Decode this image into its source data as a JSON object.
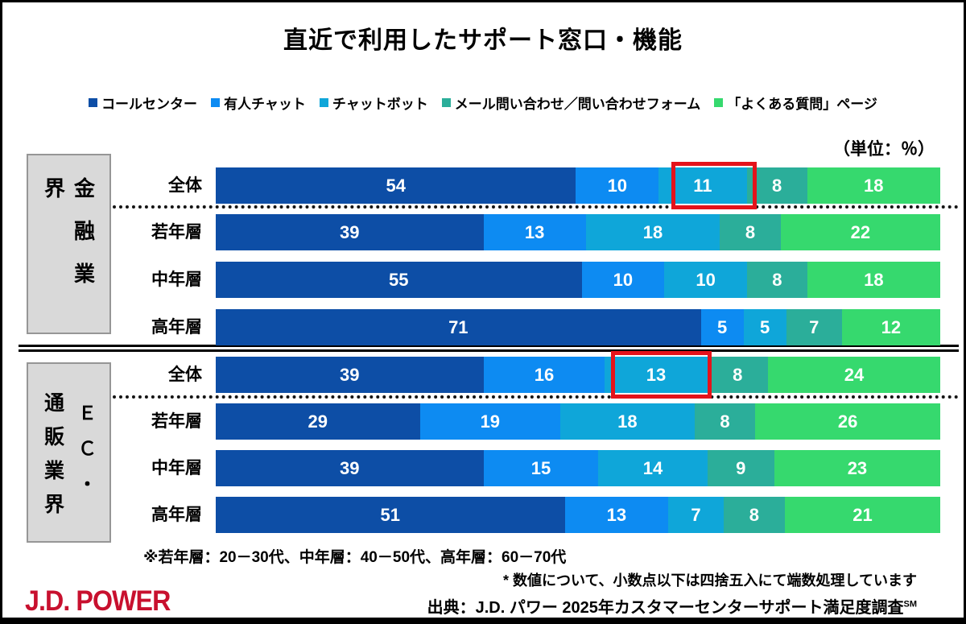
{
  "title": "直近で利用したサポート窓口・機能",
  "unit_label": "（単位：％）",
  "legend": {
    "items": [
      {
        "label": "コールセンター",
        "color": "#0d4ea6"
      },
      {
        "label": "有人チャット",
        "color": "#0d8bf2"
      },
      {
        "label": "チャットボット",
        "color": "#0fa6d9"
      },
      {
        "label": "メール問い合わせ／問い合わせフォーム",
        "color": "#2bae9a"
      },
      {
        "label": "「よくある質問」ページ",
        "color": "#36d96e"
      }
    ]
  },
  "chart_data": {
    "type": "bar",
    "orientation": "horizontal-stacked",
    "unit": "%",
    "title": "直近で利用したサポート窓口・機能",
    "series_names": [
      "コールセンター",
      "有人チャット",
      "チャットボット",
      "メール問い合わせ／問い合わせフォーム",
      "「よくある質問」ページ"
    ],
    "colors": [
      "#0d4ea6",
      "#0d8bf2",
      "#0fa6d9",
      "#2bae9a",
      "#36d96e"
    ],
    "value_label_color": "#ffffff",
    "highlight_color": "#e4131b",
    "xlim": [
      0,
      100
    ],
    "groups": [
      {
        "name": "金融業界",
        "label_vertical": "金融業界",
        "rows": [
          {
            "label": "全体",
            "values": [
              54,
              10,
              11,
              8,
              18
            ],
            "highlight_series": 2
          },
          {
            "label": "若年層",
            "values": [
              39,
              13,
              18,
              8,
              22
            ]
          },
          {
            "label": "中年層",
            "values": [
              55,
              10,
              10,
              8,
              18
            ]
          },
          {
            "label": "高年層",
            "values": [
              71,
              5,
              5,
              7,
              12
            ]
          }
        ]
      },
      {
        "name": "ＥＣ・通販業界",
        "label_columns": {
          "left": "通販業界",
          "right": "ＥＣ・"
        },
        "rows": [
          {
            "label": "全体",
            "values": [
              39,
              16,
              13,
              8,
              24
            ],
            "highlight_series": 2
          },
          {
            "label": "若年層",
            "values": [
              29,
              19,
              18,
              8,
              26
            ]
          },
          {
            "label": "中年層",
            "values": [
              39,
              15,
              14,
              9,
              23
            ]
          },
          {
            "label": "高年層",
            "values": [
              51,
              13,
              7,
              8,
              21
            ]
          }
        ]
      }
    ]
  },
  "footnotes": {
    "age_note": "※若年層：20－30代、中年層：40－50代、高年層：60－70代",
    "rounding_note": "* 数値について、小数点以下は四捨五入にて端数処理しています",
    "source": "出典：J.D. パワー 2025年カスタマーセンターサポート満足度調査",
    "source_sup": "SM"
  },
  "logo": {
    "text": "J.D. POWER",
    "color": "#c8102e"
  }
}
